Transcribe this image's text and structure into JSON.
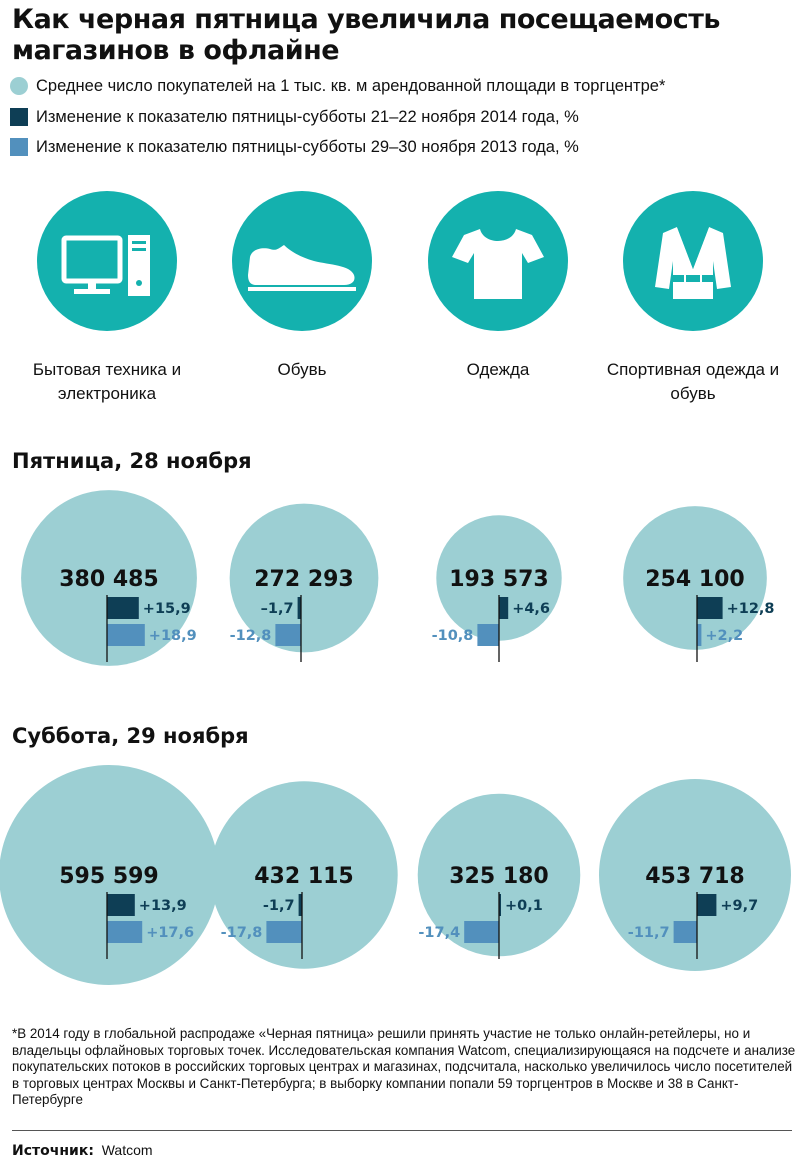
{
  "title": "Как черная пятница увеличила посещаемость магазинов в офлайне",
  "legend": [
    {
      "label": "Среднее число покупателей на 1 тыс. кв. м арендованной площади в торгцентре*",
      "color": "#9ccfd3",
      "shape": "circle"
    },
    {
      "label": "Изменение к показателю пятницы-субботы 21–22 ноября 2014 года, %",
      "color": "#0e3e55",
      "shape": "square"
    },
    {
      "label": "Изменение к показателю пятницы-субботы 29–30 ноября 2013 года, %",
      "color": "#5290bd",
      "shape": "square"
    }
  ],
  "categories": [
    {
      "label": "Бытовая техника и электроника",
      "icon": "computer-icon"
    },
    {
      "label": "Обувь",
      "icon": "shoe-icon"
    },
    {
      "label": "Одежда",
      "icon": "tshirt-icon"
    },
    {
      "label": "Спортивная одежда и обувь",
      "icon": "kimono-icon"
    }
  ],
  "sections": {
    "friday": "Пятница, 28 ноября",
    "saturday": "Суббота, 29 ноября"
  },
  "chart_data": {
    "type": "bubble",
    "categories": [
      "Бытовая техника и электроника",
      "Обувь",
      "Одежда",
      "Спортивная одежда и обувь"
    ],
    "groups": [
      {
        "name": "Пятница, 28 ноября",
        "visitors": [
          380485,
          272293,
          193573,
          254100
        ],
        "visitor_labels": [
          "380 485",
          "272 293",
          "193 573",
          "254 100"
        ],
        "series": [
          {
            "name": "Изменение к показателю пятницы-субботы 21–22 ноября 2014 года, %",
            "values": [
              15.9,
              -1.7,
              4.6,
              12.8
            ],
            "labels": [
              "+15,9",
              "–1,7",
              "+4,6",
              "+12,8"
            ]
          },
          {
            "name": "Изменение к показателю пятницы-субботы 29–30 ноября 2013 года, %",
            "values": [
              18.9,
              -12.8,
              -10.8,
              2.2
            ],
            "labels": [
              "+18,9",
              "-12,8",
              "-10,8",
              "+2,2"
            ]
          }
        ]
      },
      {
        "name": "Суббота, 29 ноября",
        "visitors": [
          595599,
          432115,
          325180,
          453718
        ],
        "visitor_labels": [
          "595 599",
          "432 115",
          "325 180",
          "453 718"
        ],
        "series": [
          {
            "name": "Изменение к показателю пятницы-субботы 21–22 ноября 2014 года, %",
            "values": [
              13.9,
              -1.7,
              0.1,
              9.7
            ],
            "labels": [
              "+13,9",
              "-1,7",
              "+0,1",
              "+9,7"
            ]
          },
          {
            "name": "Изменение к показателю пятницы-субботы 29–30 ноября 2013 года, %",
            "values": [
              17.6,
              -17.8,
              -17.4,
              -11.7
            ],
            "labels": [
              "+17,6",
              "-17,8",
              "-17,4",
              "-11,7"
            ]
          }
        ]
      }
    ],
    "colors": {
      "bubble": "#9ccfd3",
      "series1": "#0e3e55",
      "series2": "#5290bd",
      "series1_label": "#0e3e55",
      "series2_label": "#5290bd"
    }
  },
  "footnote": "*В 2014 году в глобальной распродаже «Черная пятница» решили принять участие не только онлайн-ретейлеры, но и владельцы офлайновых торговых точек. Исследовательская компания Watcom, специализирующаяся на подсчете и анализе покупательских потоков в российских торговых центрах и магазинах, подсчитала, насколько увеличилось число посетителей в торговых центрах Москвы и Санкт-Петербурга; в выборку компании попали 59 торгцентров в Москве и 38 в Санкт-Петербурге",
  "source": {
    "label": "Источник:",
    "value": "Watcom"
  }
}
